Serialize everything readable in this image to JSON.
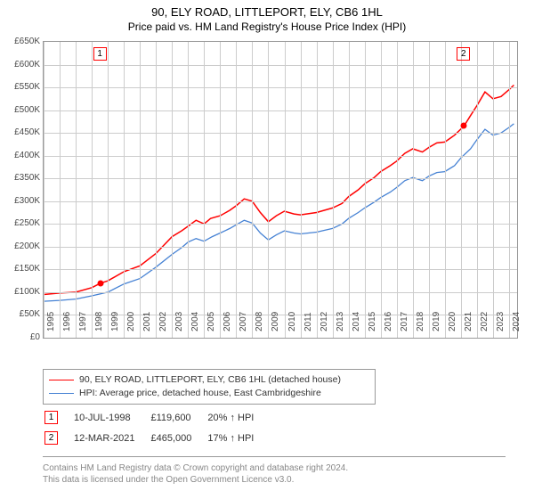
{
  "title": "90, ELY ROAD, LITTLEPORT, ELY, CB6 1HL",
  "subtitle": "Price paid vs. HM Land Registry's House Price Index (HPI)",
  "chart": {
    "type": "line",
    "ylim": [
      0,
      650000
    ],
    "ytick_step": 50000,
    "ytick_labels": [
      "£0",
      "£50K",
      "£100K",
      "£150K",
      "£200K",
      "£250K",
      "£300K",
      "£350K",
      "£400K",
      "£450K",
      "£500K",
      "£550K",
      "£600K",
      "£650K"
    ],
    "xlim": [
      1995,
      2024.5
    ],
    "xticks": [
      1995,
      1996,
      1997,
      1998,
      1999,
      2000,
      2001,
      2002,
      2003,
      2004,
      2005,
      2006,
      2007,
      2008,
      2009,
      2010,
      2011,
      2012,
      2013,
      2014,
      2015,
      2016,
      2017,
      2018,
      2019,
      2020,
      2021,
      2022,
      2023,
      2024
    ],
    "background_color": "#ffffff",
    "grid_color": "#cccccc",
    "axis_label_fontsize": 10,
    "axis_label_color": "#484848",
    "series": [
      {
        "name": "property",
        "label": "90, ELY ROAD, LITTLEPORT, ELY, CB6 1HL (detached house)",
        "color": "#ff0000",
        "line_width": 1.5,
        "points": [
          [
            1995,
            95
          ],
          [
            1996,
            98
          ],
          [
            1997,
            100
          ],
          [
            1998,
            110
          ],
          [
            1998.53,
            119.6
          ],
          [
            1999,
            125
          ],
          [
            2000,
            145
          ],
          [
            2001,
            158
          ],
          [
            2002,
            185
          ],
          [
            2003,
            222
          ],
          [
            2003.6,
            235
          ],
          [
            2004,
            245
          ],
          [
            2004.5,
            258
          ],
          [
            2005,
            250
          ],
          [
            2005.4,
            262
          ],
          [
            2006,
            268
          ],
          [
            2006.6,
            280
          ],
          [
            2007,
            290
          ],
          [
            2007.5,
            305
          ],
          [
            2008,
            300
          ],
          [
            2008.5,
            275
          ],
          [
            2009,
            255
          ],
          [
            2009.5,
            268
          ],
          [
            2010,
            278
          ],
          [
            2010.6,
            272
          ],
          [
            2011,
            270
          ],
          [
            2012,
            275
          ],
          [
            2013,
            285
          ],
          [
            2013.6,
            295
          ],
          [
            2014,
            310
          ],
          [
            2014.6,
            325
          ],
          [
            2015,
            338
          ],
          [
            2015.6,
            352
          ],
          [
            2016,
            365
          ],
          [
            2016.6,
            378
          ],
          [
            2017,
            388
          ],
          [
            2017.5,
            405
          ],
          [
            2018,
            415
          ],
          [
            2018.6,
            408
          ],
          [
            2019,
            418
          ],
          [
            2019.5,
            428
          ],
          [
            2020,
            430
          ],
          [
            2020.6,
            445
          ],
          [
            2021.19,
            465
          ],
          [
            2021.6,
            488
          ],
          [
            2022,
            510
          ],
          [
            2022.5,
            540
          ],
          [
            2023,
            525
          ],
          [
            2023.5,
            530
          ],
          [
            2024,
            545
          ],
          [
            2024.3,
            555
          ]
        ]
      },
      {
        "name": "hpi",
        "label": "HPI: Average price, detached house, East Cambridgeshire",
        "color": "#4682d4",
        "line_width": 1.3,
        "points": [
          [
            1995,
            80
          ],
          [
            1996,
            82
          ],
          [
            1997,
            85
          ],
          [
            1998,
            92
          ],
          [
            1999,
            100
          ],
          [
            2000,
            118
          ],
          [
            2001,
            130
          ],
          [
            2002,
            155
          ],
          [
            2003,
            183
          ],
          [
            2003.6,
            198
          ],
          [
            2004,
            210
          ],
          [
            2004.5,
            218
          ],
          [
            2005,
            212
          ],
          [
            2005.5,
            222
          ],
          [
            2006,
            230
          ],
          [
            2006.6,
            240
          ],
          [
            2007,
            248
          ],
          [
            2007.5,
            258
          ],
          [
            2008,
            252
          ],
          [
            2008.5,
            230
          ],
          [
            2009,
            215
          ],
          [
            2009.5,
            226
          ],
          [
            2010,
            235
          ],
          [
            2010.6,
            230
          ],
          [
            2011,
            228
          ],
          [
            2012,
            232
          ],
          [
            2013,
            240
          ],
          [
            2013.6,
            250
          ],
          [
            2014,
            262
          ],
          [
            2014.6,
            275
          ],
          [
            2015,
            285
          ],
          [
            2015.6,
            298
          ],
          [
            2016,
            308
          ],
          [
            2016.6,
            320
          ],
          [
            2017,
            330
          ],
          [
            2017.5,
            345
          ],
          [
            2018,
            352
          ],
          [
            2018.6,
            345
          ],
          [
            2019,
            355
          ],
          [
            2019.5,
            363
          ],
          [
            2020,
            365
          ],
          [
            2020.6,
            378
          ],
          [
            2021,
            395
          ],
          [
            2021.6,
            415
          ],
          [
            2022,
            435
          ],
          [
            2022.5,
            458
          ],
          [
            2023,
            445
          ],
          [
            2023.5,
            450
          ],
          [
            2024,
            462
          ],
          [
            2024.3,
            470
          ]
        ]
      }
    ],
    "sale_markers": [
      {
        "n": "1",
        "year": 1998.53,
        "price": 119600
      },
      {
        "n": "2",
        "year": 2021.19,
        "price": 465000
      }
    ]
  },
  "legend": {
    "items": [
      {
        "color": "#ff0000",
        "label": "90, ELY ROAD, LITTLEPORT, ELY, CB6 1HL (detached house)"
      },
      {
        "color": "#4682d4",
        "label": "HPI: Average price, detached house, East Cambridgeshire"
      }
    ]
  },
  "sales_table": {
    "rows": [
      {
        "n": "1",
        "date": "10-JUL-1998",
        "price": "£119,600",
        "delta": "20% ↑ HPI"
      },
      {
        "n": "2",
        "date": "12-MAR-2021",
        "price": "£465,000",
        "delta": "17% ↑ HPI"
      }
    ]
  },
  "footer": {
    "line1": "Contains HM Land Registry data © Crown copyright and database right 2024.",
    "line2": "This data is licensed under the Open Government Licence v3.0."
  }
}
